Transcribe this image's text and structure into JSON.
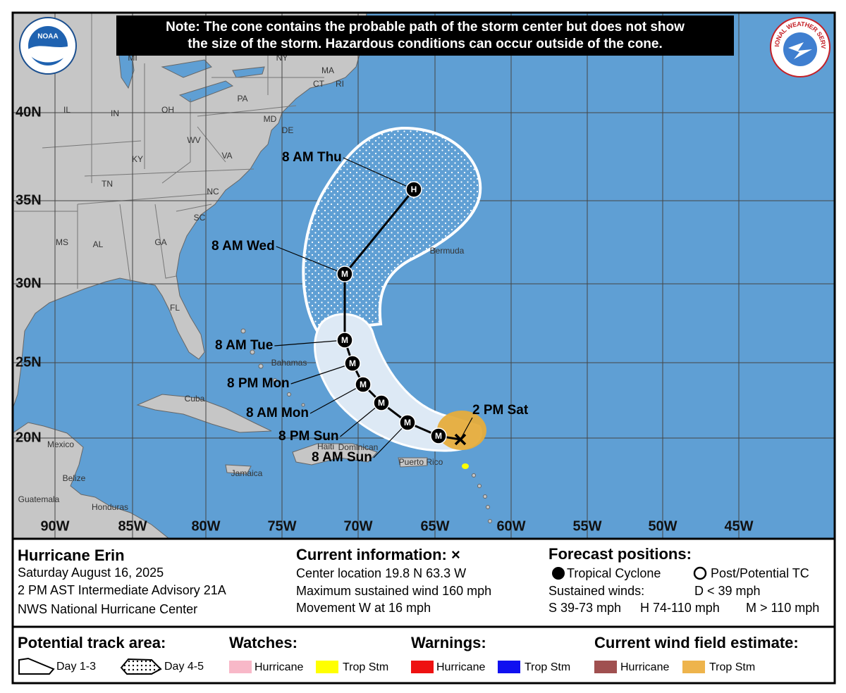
{
  "note": [
    "Note: The cone contains the probable path of the storm center but does not show",
    "the size of the storm. Hazardous conditions can occur outside of the cone."
  ],
  "logos": {
    "noaa": "NOAA",
    "nws": "NATIONAL WEATHER SERVICE"
  },
  "map": {
    "latitudes": [
      "40N",
      "35N",
      "30N",
      "25N",
      "20N"
    ],
    "longitudes": [
      "90W",
      "85W",
      "80W",
      "75W",
      "70W",
      "65W",
      "60W",
      "55W",
      "50W",
      "45W"
    ],
    "places": [
      "MI",
      "NY",
      "MA",
      "CT",
      "RI",
      "PA",
      "IL",
      "IN",
      "OH",
      "MD",
      "DE",
      "WV",
      "VA",
      "KY",
      "TN",
      "NC",
      "SC",
      "MS",
      "AL",
      "GA",
      "FL",
      "Bahamas",
      "Cuba",
      "Mexico",
      "Haiti",
      "Dominican",
      "Puerto Rico",
      "Jamaica",
      "Belize",
      "Guatemala",
      "Honduras",
      "Bermuda"
    ]
  },
  "track": {
    "symbols": [
      "M",
      "M",
      "M",
      "M",
      "M",
      "M",
      "M",
      "H"
    ],
    "labels": [
      "2 PM Sat",
      "8 AM Sun",
      "8 PM Sun",
      "8 AM Mon",
      "8 PM Mon",
      "8 AM Tue",
      "8 AM Wed",
      "8 AM Thu"
    ]
  },
  "storm": {
    "name": "Hurricane Erin",
    "date": "Saturday August 16, 2025",
    "advisory": "2 PM AST Intermediate Advisory 21A",
    "center": "NWS National Hurricane Center"
  },
  "current_information": {
    "title": "Current information: ×",
    "lines": [
      "Center location 19.8 N 63.3 W",
      "Maximum sustained wind 160 mph",
      "Movement W at 16 mph"
    ]
  },
  "forecast_positions": {
    "title": "Forecast positions:",
    "tropical_cyclone": "Tropical Cyclone",
    "post_potential": "Post/Potential TC",
    "sustained_winds": "Sustained winds:",
    "d": "D < 39 mph",
    "s": "S 39-73 mph",
    "h": "H 74-110 mph",
    "m": "M > 110 mph"
  },
  "legend": {
    "potential_track_area": {
      "title": "Potential track area:",
      "day_1_3": "Day 1-3",
      "day_4_5": "Day 4-5"
    },
    "watches": {
      "title": "Watches:",
      "hurricane": "Hurricane",
      "trop_stm": "Trop Stm"
    },
    "warnings": {
      "title": "Warnings:",
      "hurricane": "Hurricane",
      "trop_stm": "Trop Stm"
    },
    "wind_field": {
      "title": "Current wind field estimate:",
      "hurricane": "Hurricane",
      "trop_stm": "Trop Stm"
    }
  }
}
